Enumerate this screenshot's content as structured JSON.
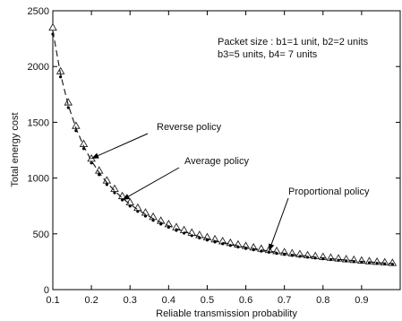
{
  "chart_data": {
    "type": "line",
    "title": "",
    "xlabel": "Reliable transmission probability",
    "ylabel": "Total energy cost",
    "xlim": [
      0.1,
      1.0
    ],
    "ylim": [
      0,
      2500
    ],
    "xticks": [
      "0.1",
      "0.2",
      "0.3",
      "0.4",
      "0.5",
      "0.6",
      "0.7",
      "0.8",
      "0.9"
    ],
    "yticks": [
      "0",
      "500",
      "1000",
      "1500",
      "2000",
      "2500"
    ],
    "grid": false,
    "legend": "none",
    "packet_note_line1": "Packet size : b1=1 unit, b2=2 units",
    "packet_note_line2": "b3=5 units, b4= 7 units",
    "annotations": [
      {
        "text": "Reverse policy",
        "series": "Reverse policy",
        "target_x": 0.2
      },
      {
        "text": "Average policy",
        "series": "Average policy",
        "target_x": 0.28
      },
      {
        "text": "Proportional policy",
        "series": "Proportional policy",
        "target_x": 0.66
      }
    ],
    "x": [
      0.1,
      0.12,
      0.14,
      0.16,
      0.18,
      0.2,
      0.22,
      0.24,
      0.26,
      0.28,
      0.3,
      0.32,
      0.34,
      0.36,
      0.38,
      0.4,
      0.42,
      0.44,
      0.46,
      0.48,
      0.5,
      0.52,
      0.54,
      0.56,
      0.58,
      0.6,
      0.62,
      0.64,
      0.66,
      0.68,
      0.7,
      0.72,
      0.74,
      0.76,
      0.78,
      0.8,
      0.82,
      0.84,
      0.86,
      0.88,
      0.9,
      0.92,
      0.94,
      0.96,
      0.98
    ],
    "series": [
      {
        "name": "Reverse policy",
        "marker": "triangle",
        "values": [
          2350,
          1958,
          1679,
          1469,
          1306,
          1175,
          1068,
          979,
          904,
          839,
          783,
          734,
          691,
          653,
          618,
          588,
          560,
          534,
          511,
          490,
          470,
          452,
          435,
          420,
          405,
          392,
          379,
          367,
          356,
          346,
          336,
          326,
          318,
          309,
          301,
          294,
          287,
          280,
          273,
          267,
          261,
          255,
          250,
          245,
          240
        ]
      },
      {
        "name": "Average policy",
        "marker": "dot",
        "values": [
          2290,
          1907,
          1632,
          1425,
          1264,
          1135,
          1030,
          942,
          868,
          804,
          749,
          701,
          659,
          621,
          588,
          558,
          531,
          506,
          484,
          463,
          444,
          427,
          411,
          396,
          382,
          369,
          357,
          345,
          335,
          325,
          315,
          306,
          298,
          290,
          283,
          276,
          269,
          263,
          257,
          251,
          246,
          241,
          236,
          231,
          227
        ]
      },
      {
        "name": "Proportional policy",
        "marker": "dash",
        "values": [
          2320,
          1932,
          1655,
          1447,
          1285,
          1155,
          1049,
          960,
          886,
          821,
          766,
          717,
          675,
          637,
          603,
          573,
          545,
          520,
          497,
          476,
          457,
          439,
          423,
          408,
          393,
          380,
          368,
          356,
          345,
          335,
          326,
          316,
          308,
          300,
          292,
          285,
          278,
          271,
          265,
          259,
          253,
          248,
          243,
          238,
          233
        ]
      }
    ]
  }
}
